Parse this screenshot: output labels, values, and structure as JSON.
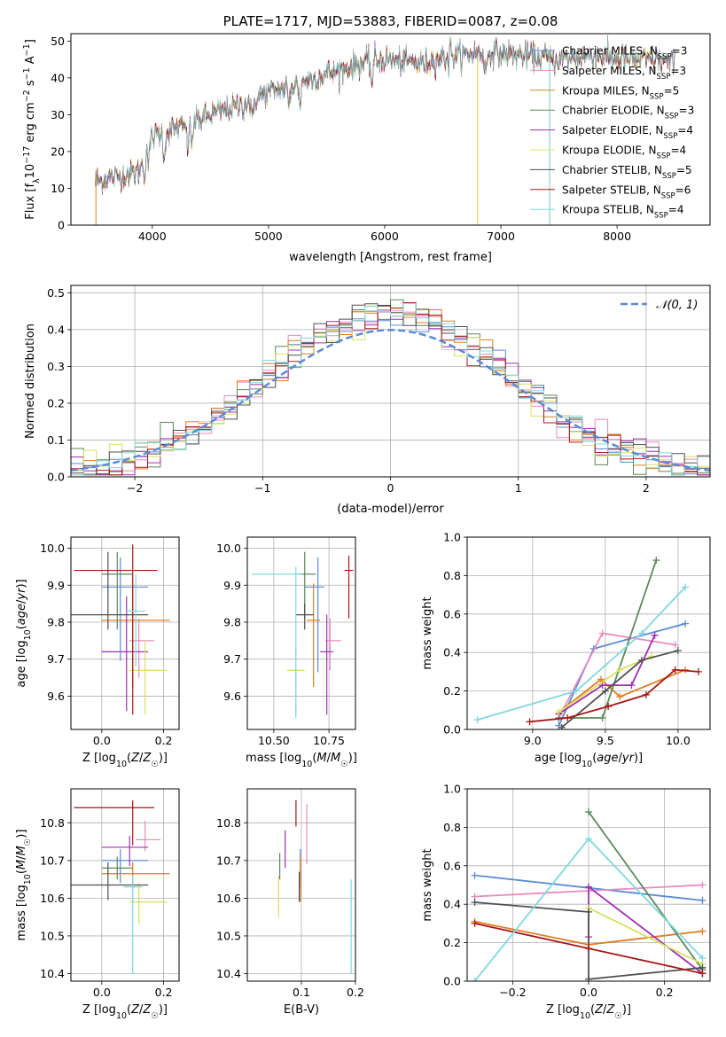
{
  "colors": [
    "#5b8bd6",
    "#e88bbf",
    "#e07e22",
    "#5a8a5a",
    "#a030b0",
    "#d8e060",
    "#505050",
    "#a81818",
    "#80d8e0"
  ],
  "spectrum_colors": [
    "#5b8bd6",
    "#e88bbf",
    "#c89020",
    "#5a8a5a",
    "#a030b0",
    "#e8e060",
    "#505050",
    "#a81818",
    "#80d8e0"
  ],
  "chart_data": [
    {
      "id": "spectrum",
      "type": "line",
      "title": "PLATE=1717, MJD=53883, FIBERID=0087, z=0.08",
      "xlabel": "wavelength [Angstrom, rest frame]",
      "ylabel_parts": [
        "Flux [f",
        "λ",
        "10",
        "−17",
        " erg cm",
        "−2",
        " s",
        "−1",
        " A",
        "−1",
        "]"
      ],
      "xlim": [
        3300,
        8800
      ],
      "ylim": [
        0,
        52
      ],
      "xticks": [
        4000,
        5000,
        6000,
        7000,
        8000
      ],
      "yticks": [
        0,
        10,
        20,
        30,
        40,
        50
      ],
      "continuum": [
        [
          3510,
          12
        ],
        [
          3700,
          13
        ],
        [
          3900,
          15
        ],
        [
          3950,
          22
        ],
        [
          4000,
          24
        ],
        [
          4200,
          26
        ],
        [
          4500,
          30
        ],
        [
          4800,
          33
        ],
        [
          5000,
          36
        ],
        [
          5200,
          38
        ],
        [
          5500,
          41
        ],
        [
          5800,
          44
        ],
        [
          6000,
          45
        ],
        [
          6300,
          44
        ],
        [
          6600,
          46
        ],
        [
          6900,
          47
        ],
        [
          7200,
          46
        ],
        [
          7500,
          45
        ],
        [
          7800,
          46
        ],
        [
          8100,
          45
        ],
        [
          8300,
          45
        ],
        [
          8500,
          44
        ]
      ],
      "series": [
        {
          "name": "Chabrier MILES",
          "nssp": "3"
        },
        {
          "name": "Salpeter MILES",
          "nssp": "3"
        },
        {
          "name": "Kroupa MILES",
          "nssp": "5"
        },
        {
          "name": "Chabrier ELODIE",
          "nssp": "3"
        },
        {
          "name": "Salpeter ELODIE",
          "nssp": "4"
        },
        {
          "name": "Kroupa ELODIE",
          "nssp": "4"
        },
        {
          "name": "Chabrier STELIB",
          "nssp": "5"
        },
        {
          "name": "Salpeter STELIB",
          "nssp": "6"
        },
        {
          "name": "Kroupa STELIB",
          "nssp": "4"
        }
      ],
      "legend_position": "right"
    },
    {
      "id": "residuals",
      "type": "histogram",
      "xlabel": "(data-model)/error",
      "ylabel": "Normed distribution",
      "xlim": [
        -2.5,
        2.5
      ],
      "ylim": [
        0,
        0.52
      ],
      "xticks": [
        -2,
        -1,
        0,
        1,
        2
      ],
      "yticks": [
        0.0,
        0.1,
        0.2,
        0.3,
        0.4,
        0.5
      ],
      "grid": true,
      "legend_label": "𝒩(0, 1)",
      "legend_position": "top-right",
      "bin_width": 0.1
    },
    {
      "id": "age_vs_Z",
      "type": "errorbar",
      "xlabel": "Z [log10(Z/Z☉)]",
      "ylabel": "age [log10(age/yr)]",
      "xlim": [
        -0.1,
        0.25
      ],
      "ylim": [
        9.51,
        10.03
      ],
      "xticks": [
        0.0,
        0.2
      ],
      "yticks": [
        9.6,
        9.7,
        9.8,
        9.9,
        10.0
      ],
      "grid": true,
      "points": [
        {
          "x": 0.06,
          "xerr": [
            0.06,
            0.09
          ],
          "y": 9.895,
          "yerr": [
            0.2,
            0.08
          ]
        },
        {
          "x": 0.12,
          "xerr": [
            0.03,
            0.05
          ],
          "y": 9.75,
          "yerr": [
            0.1,
            0.06
          ]
        },
        {
          "x": 0.1,
          "xerr": [
            0.1,
            0.12
          ],
          "y": 9.805,
          "yerr": [
            0.18,
            0.1
          ]
        },
        {
          "x": 0.05,
          "xerr": [
            0.05,
            0.05
          ],
          "y": 9.93,
          "yerr": [
            0.15,
            0.06
          ]
        },
        {
          "x": 0.08,
          "xerr": [
            0.08,
            0.07
          ],
          "y": 9.72,
          "yerr": [
            0.16,
            0.15
          ]
        },
        {
          "x": 0.14,
          "xerr": [
            0.05,
            0.07
          ],
          "y": 9.67,
          "yerr": [
            0.12,
            0.08
          ]
        },
        {
          "x": 0.02,
          "xerr": [
            0.12,
            0.13
          ],
          "y": 9.82,
          "yerr": [
            0.04,
            0.17
          ]
        },
        {
          "x": 0.1,
          "xerr": [
            0.19,
            0.08
          ],
          "y": 9.94,
          "yerr": [
            0.39,
            0.07
          ]
        },
        {
          "x": 0.11,
          "xerr": [
            0.03,
            0.03
          ],
          "y": 9.83,
          "yerr": [
            0.15,
            0.1
          ]
        }
      ]
    },
    {
      "id": "age_vs_mass",
      "type": "errorbar",
      "xlabel": "mass [log10(M/M☉)]",
      "xlim": [
        10.38,
        10.87
      ],
      "ylim": [
        9.51,
        10.03
      ],
      "xticks": [
        10.5,
        10.75
      ],
      "yticks": [
        9.6,
        9.7,
        9.8,
        9.9,
        10.0
      ],
      "grid": true,
      "points": [
        {
          "x": 10.7,
          "xerr": [
            0.06,
            0.03
          ],
          "y": 9.895,
          "yerr": [
            0.23,
            0.08
          ]
        },
        {
          "x": 10.755,
          "xerr": [
            0.02,
            0.05
          ],
          "y": 9.75,
          "yerr": [
            0.08,
            0.06
          ]
        },
        {
          "x": 10.68,
          "xerr": [
            0.03,
            0.03
          ],
          "y": 9.805,
          "yerr": [
            0.18,
            0.1
          ]
        },
        {
          "x": 10.64,
          "xerr": [
            0.03,
            0.05
          ],
          "y": 9.93,
          "yerr": [
            0.12,
            0.06
          ]
        },
        {
          "x": 10.74,
          "xerr": [
            0.03,
            0.03
          ],
          "y": 9.72,
          "yerr": [
            0.17,
            0.1
          ]
        },
        {
          "x": 10.6,
          "xerr": [
            0.04,
            0.04
          ],
          "y": 9.67,
          "yerr": [
            0.12,
            0.06
          ]
        },
        {
          "x": 10.64,
          "xerr": [
            0.04,
            0.04
          ],
          "y": 9.82,
          "yerr": [
            0.04,
            0.03
          ]
        },
        {
          "x": 10.84,
          "xerr": [
            0.02,
            0.02
          ],
          "y": 9.94,
          "yerr": [
            0.13,
            0.04
          ]
        },
        {
          "x": 10.6,
          "xerr": [
            0.2,
            0.03
          ],
          "y": 9.93,
          "yerr": [
            0.39,
            0.02
          ]
        }
      ]
    },
    {
      "id": "weight_vs_age",
      "type": "line",
      "xlabel": "age [log10(age/yr)]",
      "ylabel": "mass weight",
      "xlim": [
        8.55,
        10.22
      ],
      "ylim": [
        0,
        1
      ],
      "xticks": [
        9.0,
        9.5,
        10.0
      ],
      "yticks": [
        0.0,
        0.2,
        0.4,
        0.6,
        0.8,
        1.0
      ],
      "grid": true,
      "series": [
        {
          "x": [
            9.18,
            9.42,
            10.05
          ],
          "y": [
            0.02,
            0.42,
            0.55
          ]
        },
        {
          "x": [
            9.18,
            9.48,
            9.98
          ],
          "y": [
            0.06,
            0.5,
            0.44
          ]
        },
        {
          "x": [
            9.18,
            9.47,
            9.6,
            10.05
          ],
          "y": [
            0.09,
            0.26,
            0.17,
            0.31
          ]
        },
        {
          "x": [
            9.18,
            9.48,
            9.85
          ],
          "y": [
            0.06,
            0.06,
            0.88
          ]
        },
        {
          "x": [
            9.18,
            9.48,
            9.68,
            9.84
          ],
          "y": [
            0.08,
            0.23,
            0.23,
            0.49
          ]
        },
        {
          "x": [
            9.18,
            9.6,
            9.82
          ],
          "y": [
            0.09,
            0.31,
            0.38
          ]
        },
        {
          "x": [
            9.2,
            9.5,
            9.75,
            10.0
          ],
          "y": [
            0.01,
            0.2,
            0.36,
            0.41
          ]
        },
        {
          "x": [
            8.98,
            9.24,
            9.52,
            9.78,
            9.98,
            10.14
          ],
          "y": [
            0.04,
            0.06,
            0.12,
            0.18,
            0.31,
            0.3
          ]
        },
        {
          "x": [
            8.62,
            9.3,
            9.75,
            10.05
          ],
          "y": [
            0.05,
            0.2,
            0.5,
            0.74
          ]
        }
      ]
    },
    {
      "id": "mass_vs_Z",
      "type": "errorbar",
      "xlabel": "Z [log10(Z/Z☉)]",
      "ylabel": "mass [log10(M/M☉)]",
      "xlim": [
        -0.1,
        0.25
      ],
      "ylim": [
        10.38,
        10.89
      ],
      "xticks": [
        0.0,
        0.2
      ],
      "yticks": [
        10.4,
        10.5,
        10.6,
        10.7,
        10.8
      ],
      "grid": true,
      "points": [
        {
          "x": 0.06,
          "xerr": [
            0.06,
            0.09
          ],
          "y": 10.7,
          "yerr": [
            0.06,
            0.03
          ]
        },
        {
          "x": 0.14,
          "xerr": [
            0.03,
            0.05
          ],
          "y": 10.755,
          "yerr": [
            0.03,
            0.05
          ]
        },
        {
          "x": 0.1,
          "xerr": [
            0.1,
            0.12
          ],
          "y": 10.665,
          "yerr": [
            0.04,
            0.03
          ]
        },
        {
          "x": 0.05,
          "xerr": [
            0.05,
            0.05
          ],
          "y": 10.68,
          "yerr": [
            0.03,
            0.03
          ]
        },
        {
          "x": 0.09,
          "xerr": [
            0.09,
            0.06
          ],
          "y": 10.735,
          "yerr": [
            0.05,
            0.03
          ]
        },
        {
          "x": 0.12,
          "xerr": [
            0.03,
            0.09
          ],
          "y": 10.59,
          "yerr": [
            0.06,
            0.05
          ]
        },
        {
          "x": 0.02,
          "xerr": [
            0.12,
            0.13
          ],
          "y": 10.635,
          "yerr": [
            0.04,
            0.06
          ]
        },
        {
          "x": 0.1,
          "xerr": [
            0.19,
            0.07
          ],
          "y": 10.84,
          "yerr": [
            0.1,
            0.02
          ]
        },
        {
          "x": 0.1,
          "xerr": [
            0.03,
            0.03
          ],
          "y": 10.63,
          "yerr": [
            0.23,
            0.03
          ]
        }
      ]
    },
    {
      "id": "mass_vs_EBV",
      "type": "errorbar",
      "xlabel": "E(B-V)",
      "xlim": [
        0.0,
        0.2
      ],
      "ylim": [
        10.38,
        10.89
      ],
      "xticks": [
        0.1,
        0.2
      ],
      "yticks": [
        10.4,
        10.5,
        10.6,
        10.7,
        10.8
      ],
      "grid": true,
      "points": [
        {
          "x": 0.098,
          "y": 10.7,
          "yerr": [
            0.07,
            0.03
          ]
        },
        {
          "x": 0.11,
          "y": 10.75,
          "yerr": [
            0.06,
            0.1
          ]
        },
        {
          "x": 0.098,
          "y": 10.66,
          "yerr": [
            0.07,
            0.05
          ]
        },
        {
          "x": 0.06,
          "y": 10.68,
          "yerr": [
            0.03,
            0.04
          ]
        },
        {
          "x": 0.07,
          "y": 10.73,
          "yerr": [
            0.05,
            0.05
          ]
        },
        {
          "x": 0.058,
          "y": 10.6,
          "yerr": [
            0.05,
            0.06
          ]
        },
        {
          "x": 0.096,
          "y": 10.63,
          "yerr": [
            0.04,
            0.04
          ]
        },
        {
          "x": 0.09,
          "y": 10.82,
          "yerr": [
            0.03,
            0.04
          ]
        },
        {
          "x": 0.192,
          "y": 10.55,
          "yerr": [
            0.15,
            0.1
          ]
        }
      ]
    },
    {
      "id": "weight_vs_Z",
      "type": "line",
      "xlabel": "Z [log10(Z/Z☉)]",
      "ylabel": "mass weight",
      "xlim": [
        -0.32,
        0.32
      ],
      "ylim": [
        0,
        1
      ],
      "xticks": [
        -0.2,
        0.0,
        0.2
      ],
      "yticks": [
        0.0,
        0.2,
        0.4,
        0.6,
        0.8,
        1.0
      ],
      "grid": true,
      "series": [
        {
          "x": [
            -0.3,
            0.3
          ],
          "y": [
            0.55,
            0.42
          ]
        },
        {
          "x": [
            -0.3,
            0.3
          ],
          "y": [
            0.44,
            0.5
          ]
        },
        {
          "x": [
            -0.3,
            0.0,
            0.3
          ],
          "y": [
            0.31,
            0.19,
            0.26
          ]
        },
        {
          "x": [
            0.0,
            0.3
          ],
          "y": [
            0.88,
            0.06
          ]
        },
        {
          "x": [
            0.0,
            0.0,
            0.3
          ],
          "y": [
            0.23,
            0.49,
            0.04
          ]
        },
        {
          "x": [
            0.0,
            0.3
          ],
          "y": [
            0.38,
            0.09
          ]
        },
        {
          "x": [
            -0.3,
            0.0,
            0.0,
            0.3
          ],
          "y": [
            0.41,
            0.36,
            0.01,
            0.07
          ]
        },
        {
          "x": [
            -0.3,
            0.0,
            0.3
          ],
          "y": [
            0.3,
            0.17,
            0.04
          ]
        },
        {
          "x": [
            -0.3,
            0.0,
            0.3
          ],
          "y": [
            0.0,
            0.74,
            0.12
          ]
        }
      ]
    }
  ]
}
